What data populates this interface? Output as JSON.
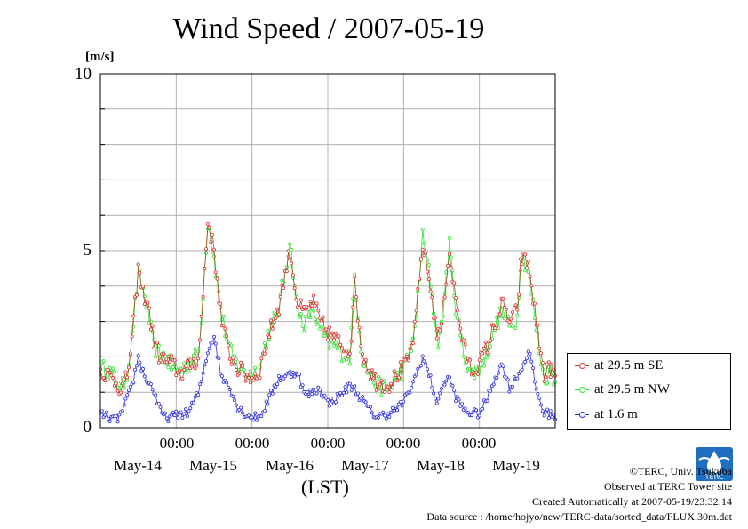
{
  "title": "Wind Speed / 2007-05-19",
  "unit_label": "[m/s]",
  "colors": {
    "se": "#e03030",
    "nw": "#30e030",
    "low": "#3030e0",
    "line_se": "#a05020"
  },
  "credits": {
    "copyright": "©TERC, Univ. Tsukuba",
    "site": "Observed at TERC Tower site",
    "created": "Created Automatically at 2007-05-19/23:32:14",
    "source": "Data source : /home/hojyo/new/TERC-data/sorted_data/FLUX.30m.dat"
  },
  "logo_text": "TERC",
  "chart_data": {
    "type": "line",
    "title": "Wind Speed / 2007-05-19",
    "ylabel": "[m/s]",
    "xlabel": "(LST)",
    "ylim": [
      0,
      10
    ],
    "yticks": [
      "0",
      "5",
      "10"
    ],
    "xlim_days": [
      0,
      6
    ],
    "xtick_times": [
      "00:00",
      "00:00",
      "00:00",
      "00:00",
      "00:00"
    ],
    "xtick_dates": [
      "May-14",
      "May-15",
      "May-16",
      "May-17",
      "May-18",
      "May-19"
    ],
    "grid": true,
    "legend_position": "bottom-right outside",
    "series": [
      {
        "name": "at 29.5 m SE",
        "color": "#e03030",
        "anchors": [
          [
            0.0,
            1.6
          ],
          [
            0.1,
            1.5
          ],
          [
            0.2,
            1.3
          ],
          [
            0.28,
            1.1
          ],
          [
            0.35,
            1.4
          ],
          [
            0.42,
            2.5
          ],
          [
            0.5,
            4.5
          ],
          [
            0.56,
            3.8
          ],
          [
            0.62,
            3.6
          ],
          [
            0.7,
            2.5
          ],
          [
            0.78,
            2.0
          ],
          [
            0.85,
            1.9
          ],
          [
            0.95,
            1.8
          ],
          [
            1.05,
            1.5
          ],
          [
            1.15,
            1.7
          ],
          [
            1.3,
            2.0
          ],
          [
            1.42,
            5.9
          ],
          [
            1.5,
            5.0
          ],
          [
            1.6,
            3.0
          ],
          [
            1.7,
            2.1
          ],
          [
            1.8,
            1.7
          ],
          [
            1.9,
            1.5
          ],
          [
            2.0,
            1.4
          ],
          [
            2.1,
            1.6
          ],
          [
            2.2,
            2.5
          ],
          [
            2.35,
            3.4
          ],
          [
            2.5,
            5.0
          ],
          [
            2.6,
            3.5
          ],
          [
            2.7,
            3.2
          ],
          [
            2.8,
            3.6
          ],
          [
            2.9,
            3.0
          ],
          [
            3.0,
            2.7
          ],
          [
            3.1,
            2.5
          ],
          [
            3.2,
            2.3
          ],
          [
            3.3,
            2.2
          ],
          [
            3.35,
            4.1
          ],
          [
            3.45,
            2.2
          ],
          [
            3.55,
            1.6
          ],
          [
            3.65,
            1.3
          ],
          [
            3.8,
            1.2
          ],
          [
            3.95,
            1.6
          ],
          [
            4.05,
            1.8
          ],
          [
            4.15,
            2.8
          ],
          [
            4.25,
            5.2
          ],
          [
            4.35,
            4.0
          ],
          [
            4.45,
            2.5
          ],
          [
            4.5,
            3.0
          ],
          [
            4.6,
            5.0
          ],
          [
            4.7,
            3.4
          ],
          [
            4.8,
            2.2
          ],
          [
            4.9,
            1.6
          ],
          [
            5.0,
            1.8
          ],
          [
            5.1,
            2.3
          ],
          [
            5.2,
            2.9
          ],
          [
            5.3,
            3.5
          ],
          [
            5.4,
            3.0
          ],
          [
            5.5,
            3.3
          ],
          [
            5.55,
            4.8
          ],
          [
            5.65,
            4.6
          ],
          [
            5.75,
            3.0
          ],
          [
            5.85,
            1.5
          ],
          [
            5.95,
            1.7
          ],
          [
            6.0,
            1.4
          ]
        ]
      },
      {
        "name": "at 29.5 m NW",
        "color": "#30e030",
        "anchors": [
          [
            0.0,
            1.7
          ],
          [
            0.1,
            1.6
          ],
          [
            0.2,
            1.4
          ],
          [
            0.28,
            1.1
          ],
          [
            0.35,
            1.5
          ],
          [
            0.42,
            2.6
          ],
          [
            0.5,
            4.4
          ],
          [
            0.56,
            3.9
          ],
          [
            0.62,
            3.4
          ],
          [
            0.7,
            2.3
          ],
          [
            0.78,
            2.1
          ],
          [
            0.85,
            2.0
          ],
          [
            0.95,
            1.7
          ],
          [
            1.05,
            1.6
          ],
          [
            1.15,
            1.8
          ],
          [
            1.3,
            2.1
          ],
          [
            1.42,
            5.9
          ],
          [
            1.5,
            4.8
          ],
          [
            1.6,
            3.2
          ],
          [
            1.7,
            2.2
          ],
          [
            1.8,
            1.8
          ],
          [
            1.9,
            1.6
          ],
          [
            2.0,
            1.5
          ],
          [
            2.1,
            1.7
          ],
          [
            2.2,
            2.6
          ],
          [
            2.35,
            3.3
          ],
          [
            2.5,
            5.3
          ],
          [
            2.6,
            3.3
          ],
          [
            2.7,
            2.9
          ],
          [
            2.8,
            3.4
          ],
          [
            2.9,
            2.7
          ],
          [
            3.0,
            2.4
          ],
          [
            3.1,
            2.3
          ],
          [
            3.2,
            2.1
          ],
          [
            3.3,
            2.0
          ],
          [
            3.35,
            4.4
          ],
          [
            3.45,
            2.0
          ],
          [
            3.55,
            1.5
          ],
          [
            3.65,
            1.2
          ],
          [
            3.8,
            1.1
          ],
          [
            3.95,
            1.5
          ],
          [
            4.05,
            1.9
          ],
          [
            4.15,
            2.7
          ],
          [
            4.25,
            5.4
          ],
          [
            4.35,
            4.2
          ],
          [
            4.45,
            2.4
          ],
          [
            4.5,
            2.8
          ],
          [
            4.6,
            5.2
          ],
          [
            4.7,
            3.2
          ],
          [
            4.8,
            2.0
          ],
          [
            4.9,
            1.5
          ],
          [
            5.0,
            1.7
          ],
          [
            5.1,
            2.1
          ],
          [
            5.2,
            2.8
          ],
          [
            5.3,
            3.3
          ],
          [
            5.4,
            2.8
          ],
          [
            5.5,
            3.1
          ],
          [
            5.55,
            5.0
          ],
          [
            5.65,
            4.4
          ],
          [
            5.75,
            2.8
          ],
          [
            5.85,
            1.4
          ],
          [
            5.95,
            1.6
          ],
          [
            6.0,
            1.3
          ]
        ]
      },
      {
        "name": "at 1.6 m",
        "color": "#3030e0",
        "anchors": [
          [
            0.0,
            0.4
          ],
          [
            0.1,
            0.3
          ],
          [
            0.2,
            0.2
          ],
          [
            0.28,
            0.4
          ],
          [
            0.35,
            0.8
          ],
          [
            0.42,
            1.2
          ],
          [
            0.5,
            2.0
          ],
          [
            0.56,
            1.6
          ],
          [
            0.62,
            1.3
          ],
          [
            0.7,
            1.1
          ],
          [
            0.78,
            0.5
          ],
          [
            0.85,
            0.3
          ],
          [
            0.95,
            0.3
          ],
          [
            1.05,
            0.4
          ],
          [
            1.15,
            0.4
          ],
          [
            1.3,
            1.0
          ],
          [
            1.42,
            2.2
          ],
          [
            1.5,
            2.6
          ],
          [
            1.6,
            1.4
          ],
          [
            1.7,
            1.2
          ],
          [
            1.8,
            0.6
          ],
          [
            1.9,
            0.4
          ],
          [
            2.0,
            0.3
          ],
          [
            2.1,
            0.3
          ],
          [
            2.2,
            0.7
          ],
          [
            2.35,
            1.4
          ],
          [
            2.5,
            1.5
          ],
          [
            2.6,
            1.6
          ],
          [
            2.7,
            0.9
          ],
          [
            2.8,
            1.0
          ],
          [
            2.9,
            1.1
          ],
          [
            3.0,
            0.7
          ],
          [
            3.1,
            0.8
          ],
          [
            3.2,
            1.0
          ],
          [
            3.3,
            1.2
          ],
          [
            3.35,
            1.1
          ],
          [
            3.45,
            0.8
          ],
          [
            3.55,
            0.5
          ],
          [
            3.65,
            0.3
          ],
          [
            3.8,
            0.4
          ],
          [
            3.95,
            0.6
          ],
          [
            4.05,
            0.9
          ],
          [
            4.15,
            1.4
          ],
          [
            4.25,
            2.0
          ],
          [
            4.35,
            1.4
          ],
          [
            4.45,
            0.6
          ],
          [
            4.5,
            1.2
          ],
          [
            4.6,
            1.4
          ],
          [
            4.7,
            0.8
          ],
          [
            4.8,
            0.5
          ],
          [
            4.9,
            0.4
          ],
          [
            5.0,
            0.4
          ],
          [
            5.1,
            0.8
          ],
          [
            5.2,
            1.4
          ],
          [
            5.3,
            1.8
          ],
          [
            5.4,
            1.1
          ],
          [
            5.5,
            1.5
          ],
          [
            5.55,
            1.6
          ],
          [
            5.65,
            2.2
          ],
          [
            5.75,
            1.1
          ],
          [
            5.85,
            0.4
          ],
          [
            5.95,
            0.4
          ],
          [
            6.0,
            0.3
          ]
        ]
      }
    ]
  }
}
